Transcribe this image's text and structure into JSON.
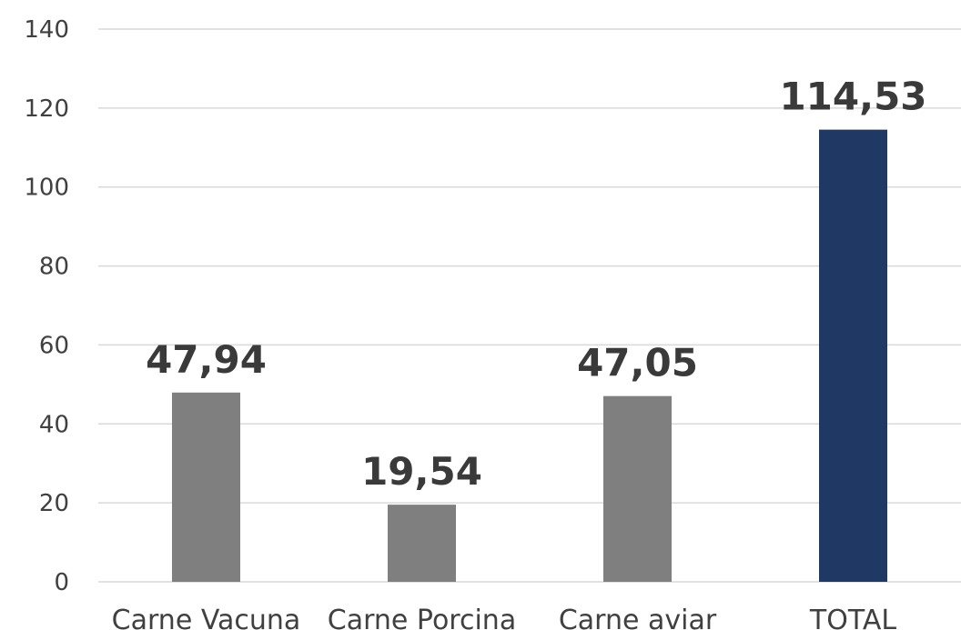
{
  "chart_data": {
    "type": "bar",
    "categories": [
      "Carne Vacuna",
      "Carne Porcina",
      "Carne aviar",
      "TOTAL"
    ],
    "values": [
      47.94,
      19.54,
      47.05,
      114.53
    ],
    "data_labels": [
      "47,94",
      "19,54",
      "47,05",
      "114,53"
    ],
    "bar_colors": [
      "#7f7f7f",
      "#7f7f7f",
      "#7f7f7f",
      "#203864"
    ],
    "ylim": [
      0,
      140
    ],
    "y_ticks": [
      0,
      20,
      40,
      60,
      80,
      100,
      120,
      140
    ],
    "y_tick_labels": [
      "0",
      "20",
      "40",
      "60",
      "80",
      "100",
      "120",
      "140"
    ],
    "grid": true,
    "legend": "none",
    "title": "",
    "xlabel": "",
    "ylabel": ""
  }
}
